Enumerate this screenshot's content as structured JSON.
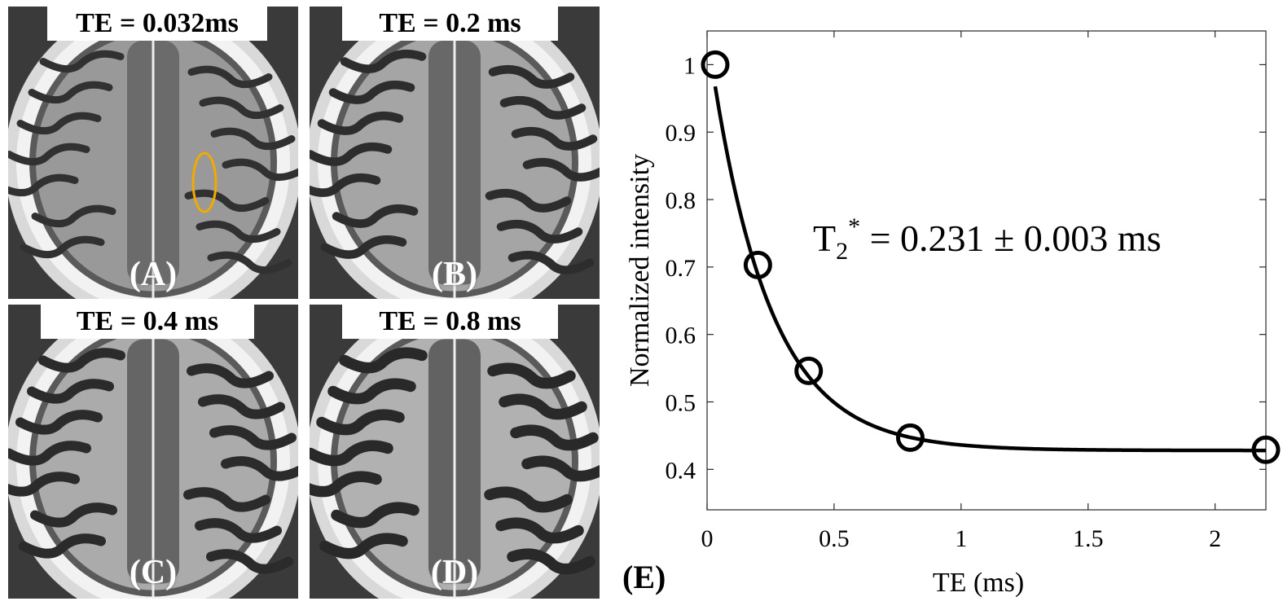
{
  "panels": [
    {
      "te_label": "TE = 0.032ms",
      "letter": "(A)",
      "roi": true
    },
    {
      "te_label": "TE = 0.2 ms",
      "letter": "(B)",
      "roi": false
    },
    {
      "te_label": "TE = 0.4 ms",
      "letter": "(C)",
      "roi": false
    },
    {
      "te_label": "TE = 0.8 ms",
      "letter": "(D)",
      "roi": false
    }
  ],
  "roi_color": "#f2a900",
  "chart_data": {
    "type": "scatter",
    "panel_label": "(E)",
    "xlabel": "TE (ms)",
    "ylabel": "Normalized intensity",
    "xlim": [
      0,
      2.2
    ],
    "ylim": [
      0.34,
      1.05
    ],
    "xticks": [
      0,
      0.5,
      1,
      1.5,
      2
    ],
    "xtick_labels": [
      "0",
      "0.5",
      "1",
      "1.5",
      "2"
    ],
    "yticks": [
      0.4,
      0.5,
      0.6,
      0.7,
      0.8,
      0.9,
      1
    ],
    "ytick_labels": [
      "0.4",
      "0.5",
      "0.6",
      "0.7",
      "0.8",
      "0.9",
      "1"
    ],
    "points": {
      "x": [
        0.032,
        0.2,
        0.4,
        0.8,
        2.2
      ],
      "y": [
        1.0,
        0.703,
        0.546,
        0.447,
        0.429
      ]
    },
    "fit": {
      "model": "exponential",
      "a": 0.62,
      "t2": 0.231,
      "c": 0.428
    },
    "annotation": {
      "base": "T",
      "sub": "2",
      "sup": "*",
      "text": " = 0.231 ± 0.003 ms"
    },
    "grid": false
  }
}
